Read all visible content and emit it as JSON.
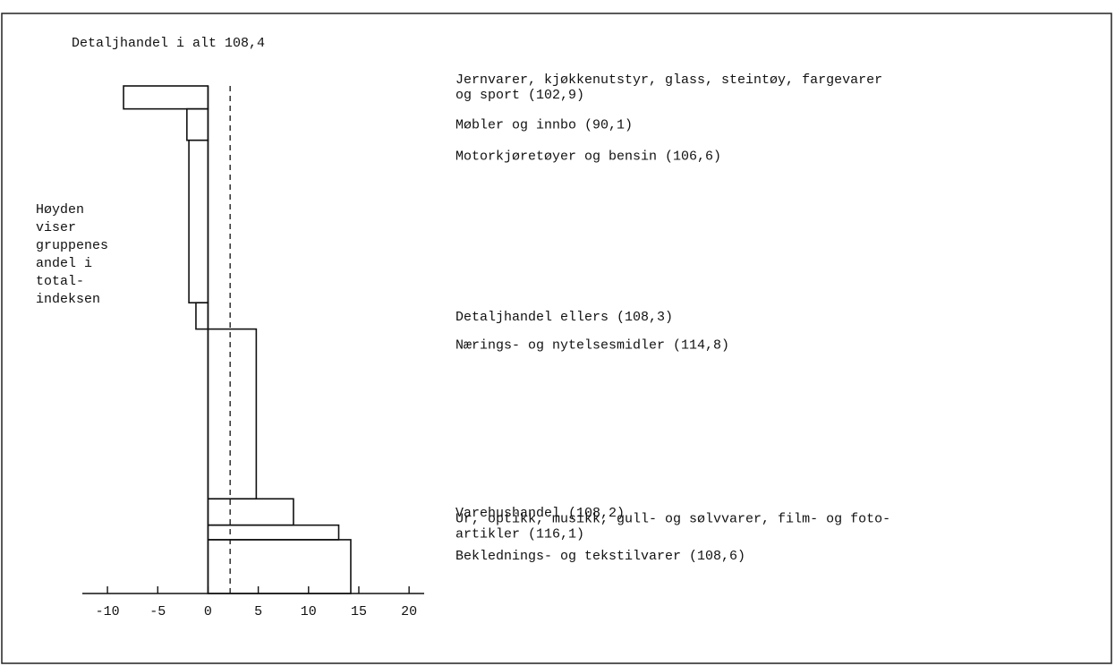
{
  "chart_data": {
    "type": "bar",
    "title": "Detaljhandel i alt 108,4",
    "y_note": [
      "Høyden",
      "viser",
      "gruppenes",
      "andel i",
      "total-",
      "indeksen"
    ],
    "x_ticks": [
      -10,
      -5,
      0,
      5,
      10,
      15,
      20
    ],
    "xlim": [
      -12.5,
      21.5
    ],
    "reference_line": 2.2,
    "groups": [
      {
        "lines": [
          "Jernvarer, kjøkkenutstyr, glass, steintøy, fargevarer",
          "og sport (102,9)"
        ],
        "value": -8.4,
        "share": 4.1
      },
      {
        "lines": [
          "Møbler og innbo (90,1)"
        ],
        "value": -2.1,
        "share": 5.6
      },
      {
        "lines": [
          "Motorkjøretøyer og bensin (106,6)"
        ],
        "value": -1.9,
        "share": 29.0
      },
      {
        "lines": [
          "Detaljhandel ellers (108,3)"
        ],
        "value": -1.2,
        "share": 4.7
      },
      {
        "lines": [
          "Nærings- og nytelsesmidler (114,8)"
        ],
        "value": 4.8,
        "share": 30.3
      },
      {
        "lines": [
          "Varehushandel (108,2)"
        ],
        "value": 8.5,
        "share": 4.7
      },
      {
        "lines": [
          "Ur, optikk, musikk, gull- og sølvvarer, film- og foto-",
          "artikler (116,1)"
        ],
        "value": 13.0,
        "share": 2.6
      },
      {
        "lines": [
          "Beklednings- og tekstilvarer (108,6)"
        ],
        "value": 14.2,
        "share": 9.6
      }
    ]
  }
}
